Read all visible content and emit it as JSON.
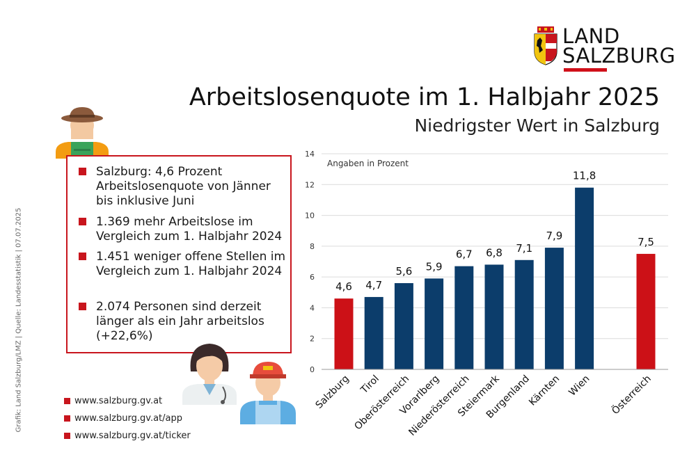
{
  "logo": {
    "line1": "LAND",
    "line2": "SALZBURG",
    "accent_color": "#d0101a"
  },
  "header": {
    "title": "Arbeitslosenquote im 1. Halbjahr 2025",
    "subtitle": "Niedrigster Wert in Salzburg"
  },
  "facts": [
    "Salzburg: 4,6 Prozent Arbeitslosenquote von Jänner bis inklusive Juni",
    "1.369 mehr Arbeitslose im Vergleich zum 1. Halbjahr 2024",
    "1.451 weniger offene Stellen im Vergleich zum 1. Halbjahr 2024",
    "2.074 Personen sind derzeit länger als ein Jahr arbeitslos (+22,6%)"
  ],
  "links": [
    "www.salzburg.gv.at",
    "www.salzburg.gv.at/app",
    "www.salzburg.gv.at/ticker"
  ],
  "source_note": "Grafik: Land Salzburg/LMZ | Quelle: Landesstatistik | 07.07.2025",
  "icons": [
    "farmer-icon",
    "doctor-icon",
    "worker-icon"
  ],
  "chart_data": {
    "type": "bar",
    "annotation": "Angaben in Prozent",
    "categories": [
      "Salzburg",
      "Tirol",
      "Oberösterreich",
      "Vorarlberg",
      "Niederösterreich",
      "Steiermark",
      "Burgenland",
      "Kärnten",
      "Wien",
      "Österreich"
    ],
    "values": [
      4.6,
      4.7,
      5.6,
      5.9,
      6.7,
      6.8,
      7.1,
      7.9,
      11.8,
      7.5
    ],
    "value_labels": [
      "4,6",
      "4,7",
      "5,6",
      "5,9",
      "6,7",
      "6,8",
      "7,1",
      "7,9",
      "11,8",
      "7,5"
    ],
    "ylim": [
      0,
      14
    ],
    "yticks": [
      0,
      2,
      4,
      6,
      8,
      10,
      12,
      14
    ],
    "grid": true,
    "colors": {
      "default": "#0c3d6b",
      "highlight": "#cc1117"
    },
    "highlight": [
      "Salzburg",
      "Österreich"
    ]
  }
}
